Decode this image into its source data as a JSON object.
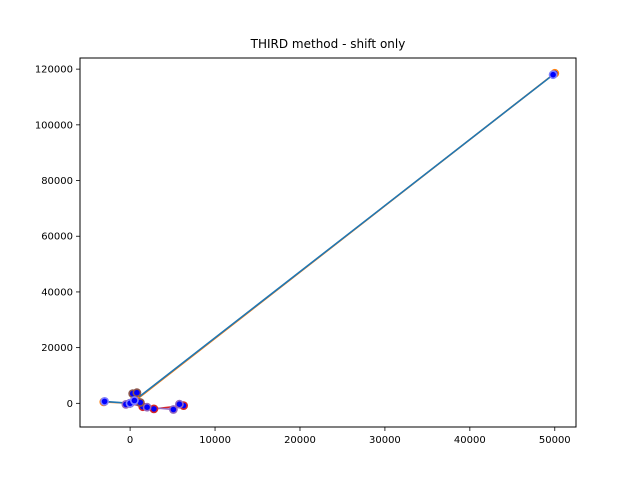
{
  "chart_data": {
    "type": "line",
    "title": "THIRD method - shift only",
    "xlabel": "",
    "ylabel": "",
    "xlim": [
      -5900,
      52500
    ],
    "ylim": [
      -8500,
      124000
    ],
    "x_ticks": [
      0,
      10000,
      20000,
      30000,
      40000,
      50000
    ],
    "y_ticks": [
      0,
      20000,
      40000,
      60000,
      80000,
      100000,
      120000
    ],
    "x_tick_labels": [
      "0",
      "10000",
      "20000",
      "30000",
      "40000",
      "50000"
    ],
    "y_tick_labels": [
      "0",
      "20000",
      "40000",
      "60000",
      "80000",
      "100000",
      "120000"
    ],
    "grid": false,
    "legend": "none",
    "series": [
      {
        "color": "#ff7f0e",
        "marker_edge": "#ff7f0e",
        "marker_face": "#0000ff",
        "x": [
          -3100,
          0,
          700,
          50000
        ],
        "y": [
          500,
          0,
          1200,
          118500
        ]
      },
      {
        "color": "#d62728",
        "marker_edge": "#d62728",
        "marker_face": "#0000ff",
        "x": [
          0,
          1500,
          2800,
          6300
        ],
        "y": [
          0,
          -1200,
          -2000,
          -800
        ]
      },
      {
        "color": "#9467bd",
        "marker_edge": "#9467bd",
        "marker_face": "#0000ff",
        "x": [
          -500,
          0,
          2000,
          5100,
          5800
        ],
        "y": [
          -400,
          0,
          -1400,
          -2200,
          -300
        ]
      },
      {
        "color": "#8c564b",
        "marker_edge": "#8c564b",
        "marker_face": "#0000ff",
        "x": [
          0,
          300,
          800,
          1200
        ],
        "y": [
          0,
          3500,
          3800,
          300
        ]
      },
      {
        "color": "#1f77b4",
        "marker_edge": "#7f7fff",
        "marker_face": "#0000ff",
        "x": [
          -3000,
          0,
          500,
          49800
        ],
        "y": [
          700,
          0,
          1000,
          118000
        ]
      }
    ]
  }
}
